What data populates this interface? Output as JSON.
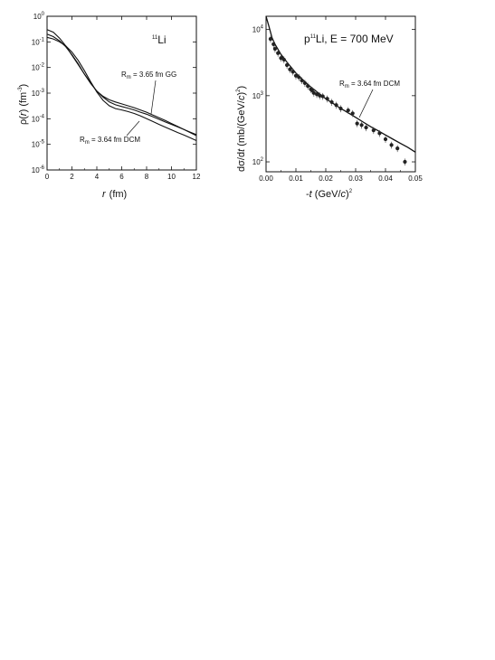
{
  "chart_data": [
    {
      "type": "line",
      "panel_label": "Li",
      "panel_label_sup": "11",
      "xlabel_var": "r",
      "xlabel_unit": "(fm)",
      "ylabel": "ρ(r) (fm⁻³)",
      "ylabel_rho": "ρ(",
      "ylabel_r": "r",
      "ylabel_close": ") (fm",
      "ylabel_sup": "-3",
      "ylabel_end": ")",
      "xlim": [
        0,
        12
      ],
      "ylim_log10": [
        -6,
        0
      ],
      "y_scale": "log",
      "x_ticks": [
        "0",
        "2",
        "4",
        "6",
        "8",
        "10",
        "12"
      ],
      "y_ticks": [
        {
          "base": "10",
          "exp": "0"
        },
        {
          "base": "10",
          "exp": "-1"
        },
        {
          "base": "10",
          "exp": "-2"
        },
        {
          "base": "10",
          "exp": "-3"
        },
        {
          "base": "10",
          "exp": "-4"
        },
        {
          "base": "10",
          "exp": "-5"
        },
        {
          "base": "10",
          "exp": "-6"
        }
      ],
      "series": [
        {
          "key": "gg",
          "x": [
            0,
            0.5,
            1,
            1.5,
            2,
            2.5,
            3,
            3.5,
            4,
            4.5,
            5,
            5.5,
            6,
            6.5,
            7,
            7.5,
            8,
            8.5,
            9,
            9.5,
            10,
            10.5,
            11,
            11.5,
            12
          ],
          "y": [
            0.2,
            0.16,
            0.11,
            0.065,
            0.032,
            0.014,
            0.0055,
            0.0024,
            0.0012,
            0.00075,
            0.00055,
            0.00045,
            0.00038,
            0.00032,
            0.00027,
            0.00022,
            0.00018,
            0.00014,
            0.00011,
            8.5e-05,
            6.5e-05,
            5e-05,
            3.8e-05,
            2.9e-05,
            2.2e-05
          ]
        },
        {
          "key": "dcm_a",
          "x": [
            0,
            0.5,
            1,
            1.5,
            2,
            2.5,
            3,
            3.5,
            4,
            4.5,
            5,
            5.5,
            6,
            6.5,
            7,
            7.5,
            8,
            8.5,
            9,
            9.5,
            10,
            10.5,
            11,
            11.5,
            12
          ],
          "y": [
            0.15,
            0.13,
            0.1,
            0.07,
            0.04,
            0.019,
            0.0075,
            0.0028,
            0.0011,
            0.00052,
            0.00032,
            0.00025,
            0.00022,
            0.00019,
            0.00016,
            0.00013,
            0.0001,
            7.8e-05,
            6e-05,
            4.7e-05,
            3.7e-05,
            2.9e-05,
            2.3e-05,
            1.8e-05,
            1.4e-05
          ]
        },
        {
          "key": "dcm_b",
          "x": [
            0,
            0.5,
            1,
            1.5,
            2,
            2.5,
            3,
            3.5,
            4,
            4.5,
            5,
            5.5,
            6,
            6.5,
            7,
            7.5,
            8,
            8.5,
            9,
            9.5,
            10,
            10.5,
            11,
            11.5,
            12
          ],
          "y": [
            0.3,
            0.24,
            0.14,
            0.07,
            0.03,
            0.013,
            0.0055,
            0.0025,
            0.0012,
            0.0007,
            0.00045,
            0.00035,
            0.0003,
            0.00026,
            0.00022,
            0.00018,
            0.00015,
            0.00012,
            9.5e-05,
            7.5e-05,
            6e-05,
            4.8e-05,
            3.8e-05,
            3e-05,
            2.4e-05
          ]
        }
      ],
      "annotations": [
        {
          "key": "gg",
          "main": "R",
          "sub": "m",
          "rest": " = 3.65 fm GG"
        },
        {
          "key": "dcm",
          "main": "R",
          "sub": "m",
          "rest": " = 3.64 fm DCM"
        }
      ]
    },
    {
      "type": "scatter",
      "panel_label_p": "p",
      "panel_label_sup": "11",
      "panel_label_rest": "Li, E = 700 MeV",
      "xlabel": "-t (GeV/c)²",
      "xlabel_minus": "-",
      "xlabel_t": "t",
      "xlabel_open": " (GeV/",
      "xlabel_c": "c",
      "xlabel_close": ")",
      "xlabel_sup": "2",
      "ylabel": "dσ/dt (mb/(GeV/c)²)",
      "ylabel_a": "dσ/d",
      "ylabel_t": "t",
      "ylabel_b": " (mb/(GeV/",
      "ylabel_c": "c",
      "ylabel_d": ")",
      "ylabel_sup": "2",
      "ylabel_e": ")",
      "xlim": [
        0,
        0.05
      ],
      "ylim_log10": [
        1.85,
        4.2
      ],
      "y_scale": "log",
      "x_ticks": [
        "0.00",
        "0.01",
        "0.02",
        "0.03",
        "0.04",
        "0.05"
      ],
      "y_ticks": [
        {
          "base": "10",
          "exp": "4",
          "val": 10000
        },
        {
          "base": "10",
          "exp": "3",
          "val": 1000
        },
        {
          "base": "10",
          "exp": "2",
          "val": 100
        }
      ],
      "points": [
        {
          "x": 0.0015,
          "y": 7200
        },
        {
          "x": 0.0025,
          "y": 6000
        },
        {
          "x": 0.003,
          "y": 5100
        },
        {
          "x": 0.004,
          "y": 4400
        },
        {
          "x": 0.005,
          "y": 3700
        },
        {
          "x": 0.006,
          "y": 3500
        },
        {
          "x": 0.007,
          "y": 2900
        },
        {
          "x": 0.008,
          "y": 2500
        },
        {
          "x": 0.009,
          "y": 2300
        },
        {
          "x": 0.01,
          "y": 2000
        },
        {
          "x": 0.011,
          "y": 1900
        },
        {
          "x": 0.012,
          "y": 1700
        },
        {
          "x": 0.013,
          "y": 1550
        },
        {
          "x": 0.014,
          "y": 1400
        },
        {
          "x": 0.015,
          "y": 1250
        },
        {
          "x": 0.0155,
          "y": 1200
        },
        {
          "x": 0.016,
          "y": 1100
        },
        {
          "x": 0.017,
          "y": 1050
        },
        {
          "x": 0.018,
          "y": 1000
        },
        {
          "x": 0.019,
          "y": 980
        },
        {
          "x": 0.0205,
          "y": 900
        },
        {
          "x": 0.022,
          "y": 800
        },
        {
          "x": 0.0235,
          "y": 720
        },
        {
          "x": 0.025,
          "y": 640
        },
        {
          "x": 0.0275,
          "y": 600
        },
        {
          "x": 0.029,
          "y": 540
        },
        {
          "x": 0.0305,
          "y": 380
        },
        {
          "x": 0.032,
          "y": 360
        },
        {
          "x": 0.0335,
          "y": 330
        },
        {
          "x": 0.036,
          "y": 300
        },
        {
          "x": 0.038,
          "y": 270
        },
        {
          "x": 0.04,
          "y": 220
        },
        {
          "x": 0.042,
          "y": 180
        },
        {
          "x": 0.044,
          "y": 160
        },
        {
          "x": 0.0465,
          "y": 100
        }
      ],
      "error_fraction": 0.12,
      "curve": {
        "x": [
          0,
          0.001,
          0.002,
          0.003,
          0.005,
          0.0075,
          0.01,
          0.0125,
          0.015,
          0.0175,
          0.02,
          0.0225,
          0.025,
          0.0275,
          0.03,
          0.0325,
          0.035,
          0.0375,
          0.04,
          0.0425,
          0.045,
          0.0475,
          0.05
        ],
        "y": [
          20000,
          11000,
          7500,
          6000,
          4200,
          3000,
          2200,
          1700,
          1350,
          1100,
          900,
          760,
          640,
          550,
          470,
          400,
          340,
          295,
          255,
          220,
          190,
          165,
          140
        ]
      },
      "annotation": {
        "main": "R",
        "sub": "m",
        "rest": " = 3.64 fm DCM"
      }
    }
  ]
}
